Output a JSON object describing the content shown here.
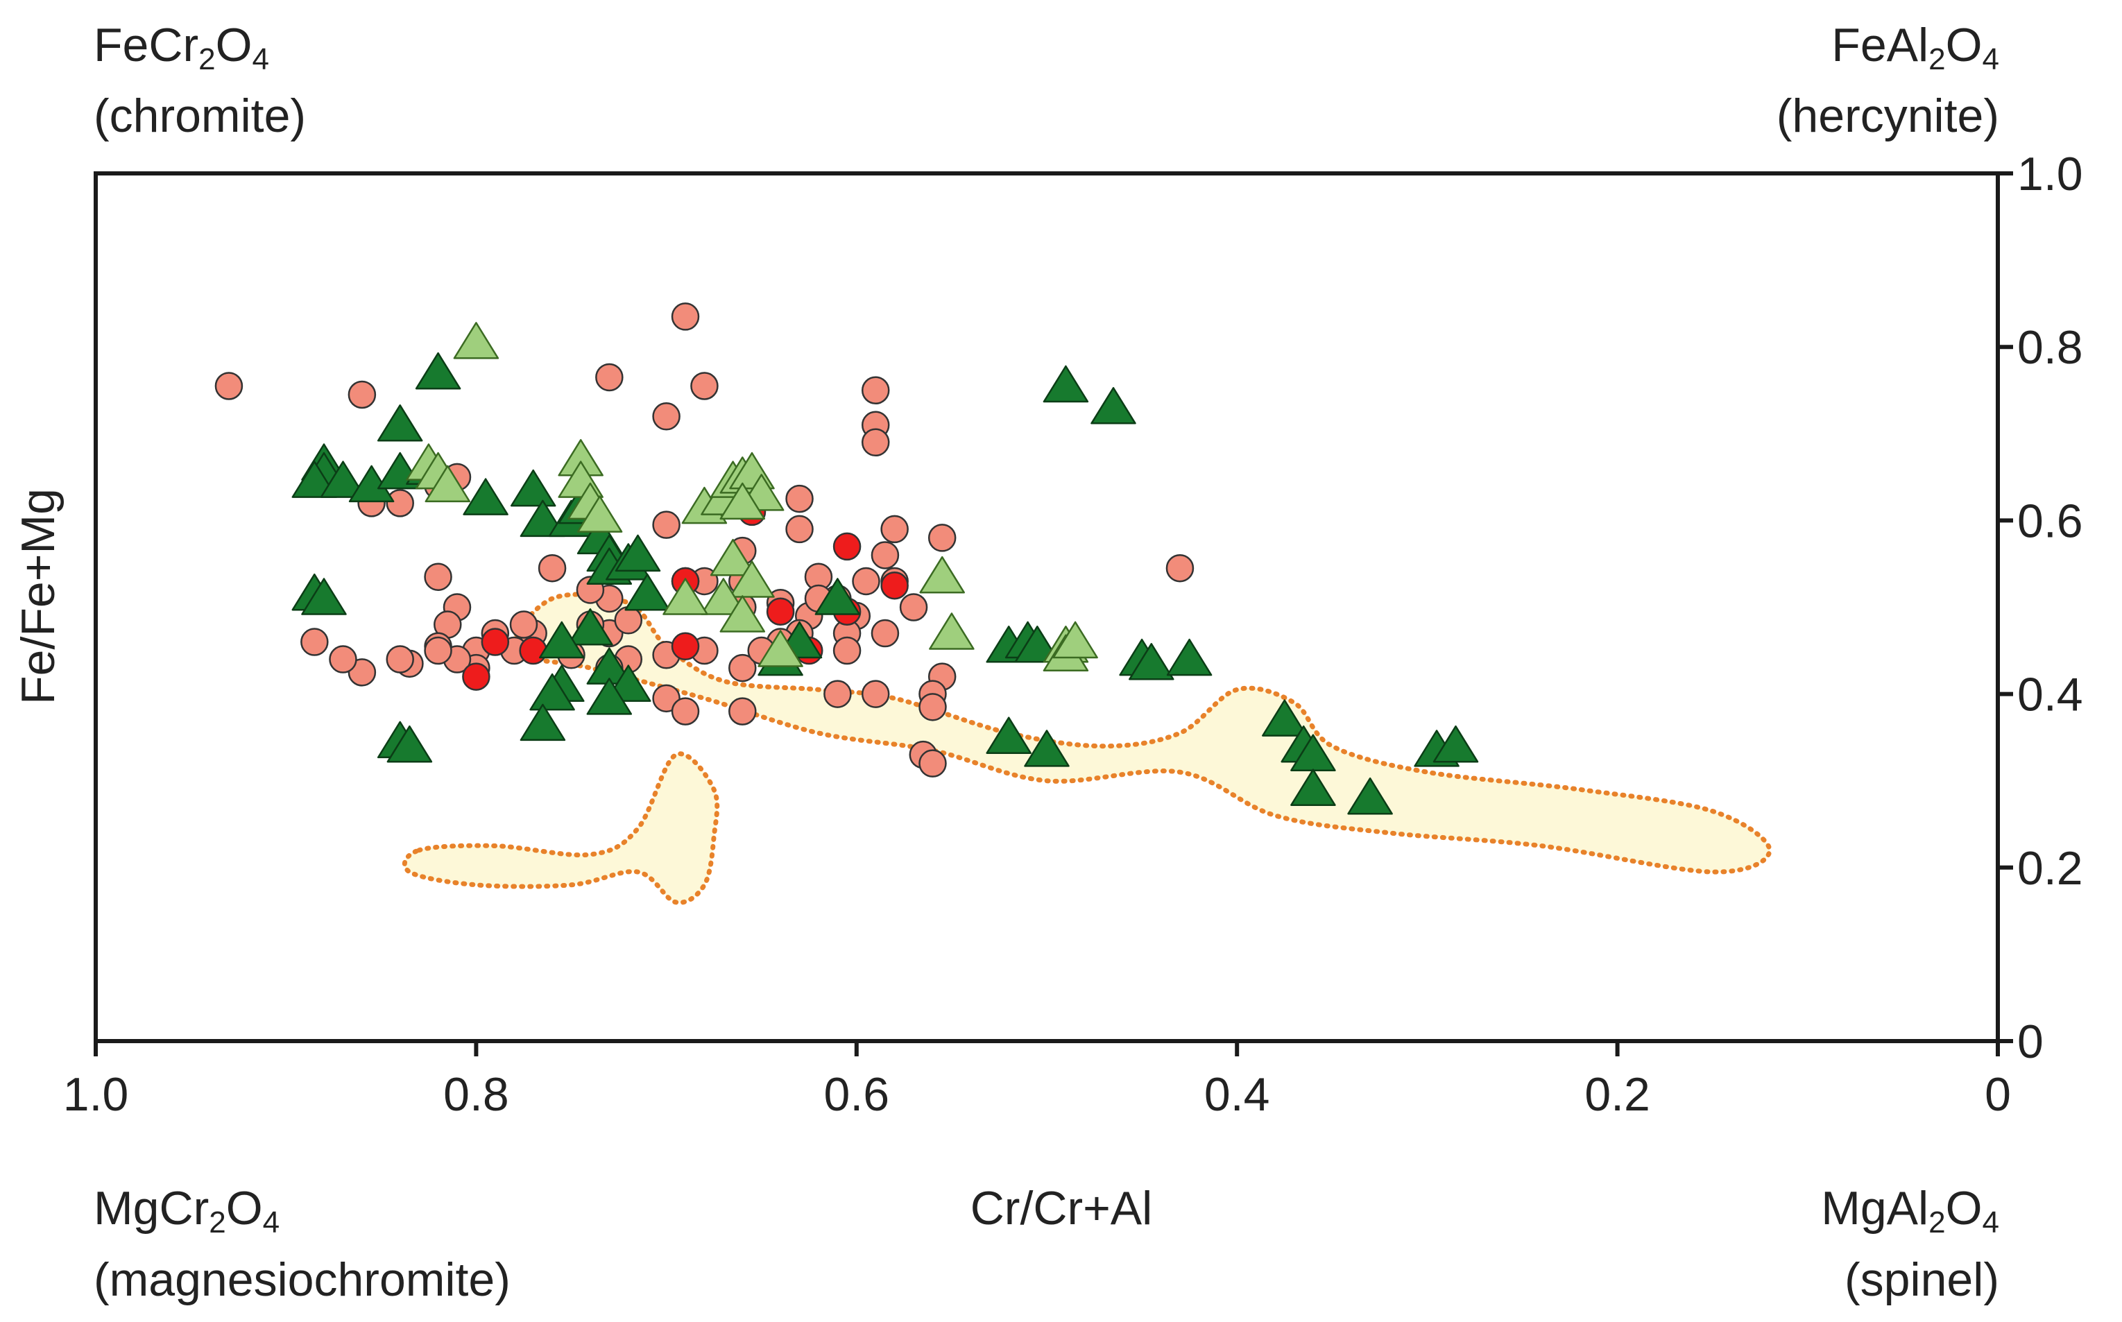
{
  "corner_labels": {
    "top_left": {
      "formula": [
        [
          "FeCr",
          "n"
        ],
        [
          "2",
          "s"
        ],
        [
          "O",
          "n"
        ],
        [
          "4",
          "s"
        ]
      ],
      "name": "(chromite)"
    },
    "top_right": {
      "formula": [
        [
          "FeAl",
          "n"
        ],
        [
          "2",
          "s"
        ],
        [
          "O",
          "n"
        ],
        [
          "4",
          "s"
        ]
      ],
      "name": "(hercynite)"
    },
    "bottom_left": {
      "formula": [
        [
          "MgCr",
          "n"
        ],
        [
          "2",
          "s"
        ],
        [
          "O",
          "n"
        ],
        [
          "4",
          "s"
        ]
      ],
      "name": "(magnesiochromite)"
    },
    "bottom_right": {
      "formula": [
        [
          "MgAl",
          "n"
        ],
        [
          "2",
          "s"
        ],
        [
          "O",
          "n"
        ],
        [
          "4",
          "s"
        ]
      ],
      "name": "(spinel)"
    }
  },
  "chart_data": {
    "type": "scatter",
    "xlabel": "Cr/Cr+Al",
    "ylabel": "Fe/Fe+Mg",
    "xlim": [
      1.0,
      0
    ],
    "ylim": [
      0,
      1.0
    ],
    "x_reversed": true,
    "y_axis_side": "right",
    "x_ticks": [
      {
        "value": 1.0,
        "label": "1.0"
      },
      {
        "value": 0.8,
        "label": "0.8"
      },
      {
        "value": 0.6,
        "label": "0.6"
      },
      {
        "value": 0.4,
        "label": "0.4"
      },
      {
        "value": 0.2,
        "label": "0.2"
      },
      {
        "value": 0,
        "label": "0"
      }
    ],
    "y_ticks": [
      {
        "value": 1.0,
        "label": "1.0"
      },
      {
        "value": 0.8,
        "label": "0.8"
      },
      {
        "value": 0.6,
        "label": "0.6"
      },
      {
        "value": 0.4,
        "label": "0.4"
      },
      {
        "value": 0.2,
        "label": "0.2"
      },
      {
        "value": 0,
        "label": "0"
      }
    ],
    "grid": false,
    "fields": [
      {
        "fill": "#fdf8d8",
        "stroke": "#e8822a",
        "style": "dotted",
        "outline": [
          [
            0.78,
            0.45
          ],
          [
            0.76,
            0.51
          ],
          [
            0.72,
            0.505
          ],
          [
            0.7,
            0.455
          ],
          [
            0.67,
            0.415
          ],
          [
            0.62,
            0.405
          ],
          [
            0.58,
            0.395
          ],
          [
            0.52,
            0.355
          ],
          [
            0.47,
            0.34
          ],
          [
            0.43,
            0.355
          ],
          [
            0.4,
            0.405
          ],
          [
            0.37,
            0.39
          ],
          [
            0.35,
            0.34
          ],
          [
            0.3,
            0.31
          ],
          [
            0.22,
            0.29
          ],
          [
            0.15,
            0.265
          ],
          [
            0.12,
            0.22
          ],
          [
            0.15,
            0.195
          ],
          [
            0.24,
            0.225
          ],
          [
            0.32,
            0.24
          ],
          [
            0.38,
            0.26
          ],
          [
            0.43,
            0.31
          ],
          [
            0.5,
            0.3
          ],
          [
            0.56,
            0.335
          ],
          [
            0.62,
            0.355
          ],
          [
            0.68,
            0.395
          ],
          [
            0.74,
            0.43
          ]
        ]
      },
      {
        "fill": "#fdf8d8",
        "stroke": "#e8822a",
        "style": "dotted",
        "outline": [
          [
            0.83,
            0.22
          ],
          [
            0.79,
            0.225
          ],
          [
            0.74,
            0.215
          ],
          [
            0.715,
            0.245
          ],
          [
            0.695,
            0.33
          ],
          [
            0.675,
            0.29
          ],
          [
            0.675,
            0.235
          ],
          [
            0.68,
            0.18
          ],
          [
            0.695,
            0.16
          ],
          [
            0.715,
            0.195
          ],
          [
            0.75,
            0.18
          ],
          [
            0.8,
            0.18
          ],
          [
            0.835,
            0.195
          ]
        ]
      }
    ],
    "series": [
      {
        "marker": "circle",
        "color": "#f28c7a",
        "edge": "#333333",
        "points": [
          [
            0.93,
            0.755
          ],
          [
            0.86,
            0.745
          ],
          [
            0.69,
            0.835
          ],
          [
            0.7,
            0.72
          ],
          [
            0.68,
            0.755
          ],
          [
            0.59,
            0.75
          ],
          [
            0.59,
            0.71
          ],
          [
            0.59,
            0.69
          ],
          [
            0.73,
            0.765
          ],
          [
            0.81,
            0.65
          ],
          [
            0.82,
            0.64
          ],
          [
            0.84,
            0.62
          ],
          [
            0.855,
            0.62
          ],
          [
            0.82,
            0.535
          ],
          [
            0.81,
            0.5
          ],
          [
            0.76,
            0.545
          ],
          [
            0.7,
            0.595
          ],
          [
            0.665,
            0.62
          ],
          [
            0.63,
            0.625
          ],
          [
            0.63,
            0.59
          ],
          [
            0.66,
            0.565
          ],
          [
            0.68,
            0.53
          ],
          [
            0.69,
            0.53
          ],
          [
            0.66,
            0.53
          ],
          [
            0.66,
            0.5
          ],
          [
            0.64,
            0.505
          ],
          [
            0.625,
            0.49
          ],
          [
            0.61,
            0.51
          ],
          [
            0.6,
            0.49
          ],
          [
            0.605,
            0.47
          ],
          [
            0.605,
            0.45
          ],
          [
            0.63,
            0.47
          ],
          [
            0.64,
            0.46
          ],
          [
            0.62,
            0.535
          ],
          [
            0.62,
            0.51
          ],
          [
            0.595,
            0.53
          ],
          [
            0.585,
            0.56
          ],
          [
            0.58,
            0.59
          ],
          [
            0.555,
            0.58
          ],
          [
            0.58,
            0.53
          ],
          [
            0.57,
            0.5
          ],
          [
            0.585,
            0.47
          ],
          [
            0.555,
            0.42
          ],
          [
            0.56,
            0.4
          ],
          [
            0.56,
            0.385
          ],
          [
            0.59,
            0.4
          ],
          [
            0.61,
            0.4
          ],
          [
            0.565,
            0.33
          ],
          [
            0.56,
            0.32
          ],
          [
            0.43,
            0.545
          ],
          [
            0.66,
            0.43
          ],
          [
            0.65,
            0.45
          ],
          [
            0.66,
            0.38
          ],
          [
            0.7,
            0.395
          ],
          [
            0.69,
            0.38
          ],
          [
            0.72,
            0.44
          ],
          [
            0.73,
            0.43
          ],
          [
            0.73,
            0.47
          ],
          [
            0.73,
            0.51
          ],
          [
            0.74,
            0.48
          ],
          [
            0.75,
            0.445
          ],
          [
            0.77,
            0.47
          ],
          [
            0.775,
            0.48
          ],
          [
            0.78,
            0.45
          ],
          [
            0.79,
            0.47
          ],
          [
            0.8,
            0.45
          ],
          [
            0.8,
            0.43
          ],
          [
            0.81,
            0.44
          ],
          [
            0.815,
            0.48
          ],
          [
            0.82,
            0.455
          ],
          [
            0.835,
            0.435
          ],
          [
            0.84,
            0.44
          ],
          [
            0.86,
            0.425
          ],
          [
            0.87,
            0.44
          ],
          [
            0.885,
            0.46
          ],
          [
            0.82,
            0.45
          ],
          [
            0.74,
            0.52
          ],
          [
            0.72,
            0.485
          ],
          [
            0.7,
            0.445
          ],
          [
            0.68,
            0.45
          ]
        ]
      },
      {
        "marker": "circle",
        "color": "#ee1c1c",
        "edge": "#333333",
        "points": [
          [
            0.655,
            0.61
          ],
          [
            0.605,
            0.57
          ],
          [
            0.58,
            0.525
          ],
          [
            0.605,
            0.495
          ],
          [
            0.64,
            0.495
          ],
          [
            0.625,
            0.45
          ],
          [
            0.69,
            0.53
          ],
          [
            0.69,
            0.455
          ],
          [
            0.77,
            0.45
          ],
          [
            0.79,
            0.46
          ],
          [
            0.8,
            0.42
          ]
        ]
      },
      {
        "marker": "triangle",
        "color": "#177a2e",
        "edge": "#0b3d16",
        "points": [
          [
            0.82,
            0.77
          ],
          [
            0.84,
            0.71
          ],
          [
            0.88,
            0.665
          ],
          [
            0.88,
            0.655
          ],
          [
            0.885,
            0.645
          ],
          [
            0.87,
            0.645
          ],
          [
            0.855,
            0.64
          ],
          [
            0.84,
            0.655
          ],
          [
            0.825,
            0.66
          ],
          [
            0.795,
            0.625
          ],
          [
            0.77,
            0.635
          ],
          [
            0.765,
            0.6
          ],
          [
            0.75,
            0.6
          ],
          [
            0.745,
            0.615
          ],
          [
            0.735,
            0.58
          ],
          [
            0.73,
            0.56
          ],
          [
            0.73,
            0.545
          ],
          [
            0.72,
            0.55
          ],
          [
            0.715,
            0.56
          ],
          [
            0.71,
            0.515
          ],
          [
            0.885,
            0.515
          ],
          [
            0.88,
            0.51
          ],
          [
            0.74,
            0.475
          ],
          [
            0.755,
            0.46
          ],
          [
            0.73,
            0.43
          ],
          [
            0.72,
            0.41
          ],
          [
            0.755,
            0.41
          ],
          [
            0.76,
            0.4
          ],
          [
            0.73,
            0.395
          ],
          [
            0.765,
            0.365
          ],
          [
            0.84,
            0.345
          ],
          [
            0.835,
            0.34
          ],
          [
            0.49,
            0.755
          ],
          [
            0.465,
            0.73
          ],
          [
            0.52,
            0.455
          ],
          [
            0.51,
            0.46
          ],
          [
            0.505,
            0.455
          ],
          [
            0.45,
            0.44
          ],
          [
            0.445,
            0.435
          ],
          [
            0.425,
            0.44
          ],
          [
            0.52,
            0.35
          ],
          [
            0.5,
            0.335
          ],
          [
            0.375,
            0.37
          ],
          [
            0.365,
            0.34
          ],
          [
            0.36,
            0.33
          ],
          [
            0.36,
            0.29
          ],
          [
            0.33,
            0.28
          ],
          [
            0.295,
            0.335
          ],
          [
            0.285,
            0.34
          ],
          [
            0.61,
            0.51
          ],
          [
            0.63,
            0.46
          ],
          [
            0.64,
            0.44
          ]
        ]
      },
      {
        "marker": "triangle",
        "color": "#9fcf7d",
        "edge": "#3b6b22",
        "points": [
          [
            0.8,
            0.805
          ],
          [
            0.745,
            0.67
          ],
          [
            0.745,
            0.645
          ],
          [
            0.74,
            0.62
          ],
          [
            0.735,
            0.605
          ],
          [
            0.825,
            0.665
          ],
          [
            0.82,
            0.655
          ],
          [
            0.815,
            0.64
          ],
          [
            0.68,
            0.615
          ],
          [
            0.67,
            0.625
          ],
          [
            0.665,
            0.645
          ],
          [
            0.66,
            0.65
          ],
          [
            0.655,
            0.655
          ],
          [
            0.65,
            0.63
          ],
          [
            0.66,
            0.62
          ],
          [
            0.665,
            0.555
          ],
          [
            0.655,
            0.53
          ],
          [
            0.67,
            0.51
          ],
          [
            0.66,
            0.49
          ],
          [
            0.69,
            0.51
          ],
          [
            0.555,
            0.535
          ],
          [
            0.55,
            0.47
          ],
          [
            0.49,
            0.455
          ],
          [
            0.49,
            0.445
          ],
          [
            0.485,
            0.46
          ],
          [
            0.64,
            0.45
          ]
        ]
      }
    ]
  }
}
